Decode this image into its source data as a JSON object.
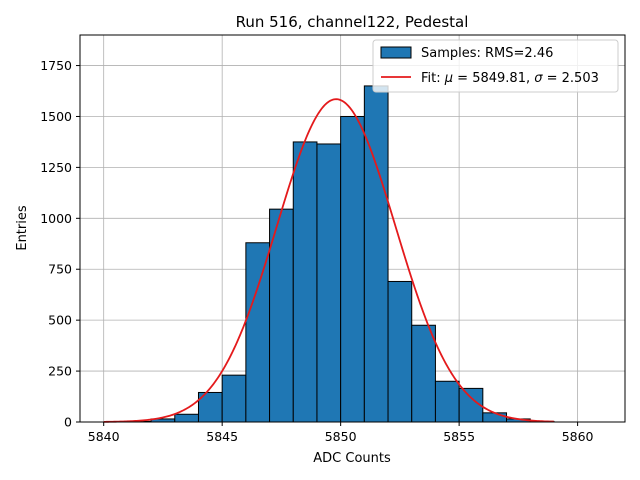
{
  "chart_data": {
    "type": "bar",
    "title": "Run 516, channel122, Pedestal",
    "xlabel": "ADC Counts",
    "ylabel": "Entries",
    "xlim": [
      5839,
      5862
    ],
    "ylim": [
      0,
      1900
    ],
    "x_ticks": [
      5840,
      5845,
      5850,
      5855,
      5860
    ],
    "y_ticks": [
      0,
      250,
      500,
      750,
      1000,
      1250,
      1500,
      1750
    ],
    "grid": true,
    "legend_position": "upper right",
    "histogram": {
      "name": "Samples: RMS=2.46",
      "color": "#1f77b4",
      "edge_color": "#000000",
      "bins": [
        {
          "left": 5841,
          "right": 5842,
          "value": 3
        },
        {
          "left": 5842,
          "right": 5843,
          "value": 15
        },
        {
          "left": 5843,
          "right": 5844,
          "value": 38
        },
        {
          "left": 5844,
          "right": 5845,
          "value": 145
        },
        {
          "left": 5845,
          "right": 5846,
          "value": 230
        },
        {
          "left": 5846,
          "right": 5847,
          "value": 880
        },
        {
          "left": 5847,
          "right": 5848,
          "value": 1045
        },
        {
          "left": 5848,
          "right": 5849,
          "value": 1375
        },
        {
          "left": 5849,
          "right": 5850,
          "value": 1365
        },
        {
          "left": 5850,
          "right": 5851,
          "value": 1500
        },
        {
          "left": 5851,
          "right": 5852,
          "value": 1650
        },
        {
          "left": 5852,
          "right": 5853,
          "value": 690
        },
        {
          "left": 5853,
          "right": 5854,
          "value": 475
        },
        {
          "left": 5854,
          "right": 5855,
          "value": 200
        },
        {
          "left": 5855,
          "right": 5856,
          "value": 165
        },
        {
          "left": 5856,
          "right": 5857,
          "value": 45
        },
        {
          "left": 5857,
          "right": 5858,
          "value": 15
        },
        {
          "left": 5858,
          "right": 5859,
          "value": 3
        }
      ]
    },
    "fit": {
      "name": "Fit: μ = 5849.81, σ = 2.503",
      "label_prefix": "Fit: ",
      "mu_symbol": "μ",
      "mu_text": " = 5849.81, ",
      "sigma_symbol": "σ",
      "sigma_text": " = 2.503",
      "color": "#e41a1c",
      "mu": 5849.81,
      "sigma": 2.503,
      "amplitude": 1585,
      "x_range": [
        5840,
        5859
      ]
    }
  }
}
